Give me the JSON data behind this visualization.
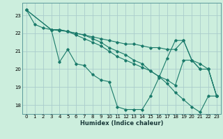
{
  "xlabel": "Humidex (Indice chaleur)",
  "xlim": [
    -0.5,
    23.5
  ],
  "ylim": [
    17.5,
    23.7
  ],
  "yticks": [
    18,
    19,
    20,
    21,
    22,
    23
  ],
  "xticks": [
    0,
    1,
    2,
    3,
    4,
    5,
    6,
    7,
    8,
    9,
    10,
    11,
    12,
    13,
    14,
    15,
    16,
    17,
    18,
    19,
    20,
    21,
    22,
    23
  ],
  "bg_color": "#cceedd",
  "grid_color": "#aacccc",
  "line_color": "#1a7a6a",
  "lines": [
    {
      "x": [
        0,
        1,
        2,
        3,
        4,
        5,
        6,
        7,
        8,
        9,
        10,
        11,
        12,
        13,
        14,
        15,
        16,
        17,
        18,
        19,
        20,
        21,
        22,
        23
      ],
      "y": [
        23.3,
        22.5,
        22.3,
        22.2,
        20.4,
        21.1,
        20.3,
        20.2,
        19.7,
        19.4,
        19.3,
        17.9,
        17.75,
        17.75,
        17.75,
        18.5,
        19.5,
        20.6,
        21.6,
        21.6,
        20.5,
        20.0,
        20.0,
        18.5
      ]
    },
    {
      "x": [
        0,
        3,
        4,
        5,
        6,
        7,
        8,
        9,
        10,
        11,
        12,
        13,
        14,
        15,
        16,
        17,
        18,
        19,
        20,
        21,
        22,
        23
      ],
      "y": [
        23.3,
        22.2,
        22.2,
        22.1,
        22.0,
        21.9,
        21.8,
        21.7,
        21.6,
        21.5,
        21.4,
        21.4,
        21.3,
        21.2,
        21.2,
        21.1,
        21.1,
        21.6,
        20.5,
        20.3,
        20.0,
        18.5
      ]
    },
    {
      "x": [
        0,
        3,
        4,
        5,
        6,
        7,
        8,
        9,
        10,
        11,
        12,
        13,
        14,
        15,
        16,
        17,
        18,
        19,
        20,
        21,
        22,
        23
      ],
      "y": [
        23.3,
        22.2,
        22.15,
        22.1,
        21.9,
        21.7,
        21.5,
        21.3,
        21.0,
        20.7,
        20.5,
        20.3,
        20.1,
        19.9,
        19.6,
        19.4,
        19.1,
        20.5,
        20.5,
        20.0,
        20.0,
        18.5
      ]
    },
    {
      "x": [
        3,
        4,
        5,
        6,
        7,
        8,
        9,
        10,
        11,
        12,
        13,
        14,
        15,
        16,
        17,
        18,
        19,
        20,
        21,
        22,
        23
      ],
      "y": [
        22.2,
        22.2,
        22.1,
        22.0,
        21.9,
        21.7,
        21.5,
        21.2,
        21.0,
        20.8,
        20.5,
        20.3,
        19.9,
        19.6,
        19.2,
        18.7,
        18.3,
        17.9,
        17.6,
        18.5,
        18.5
      ]
    }
  ]
}
